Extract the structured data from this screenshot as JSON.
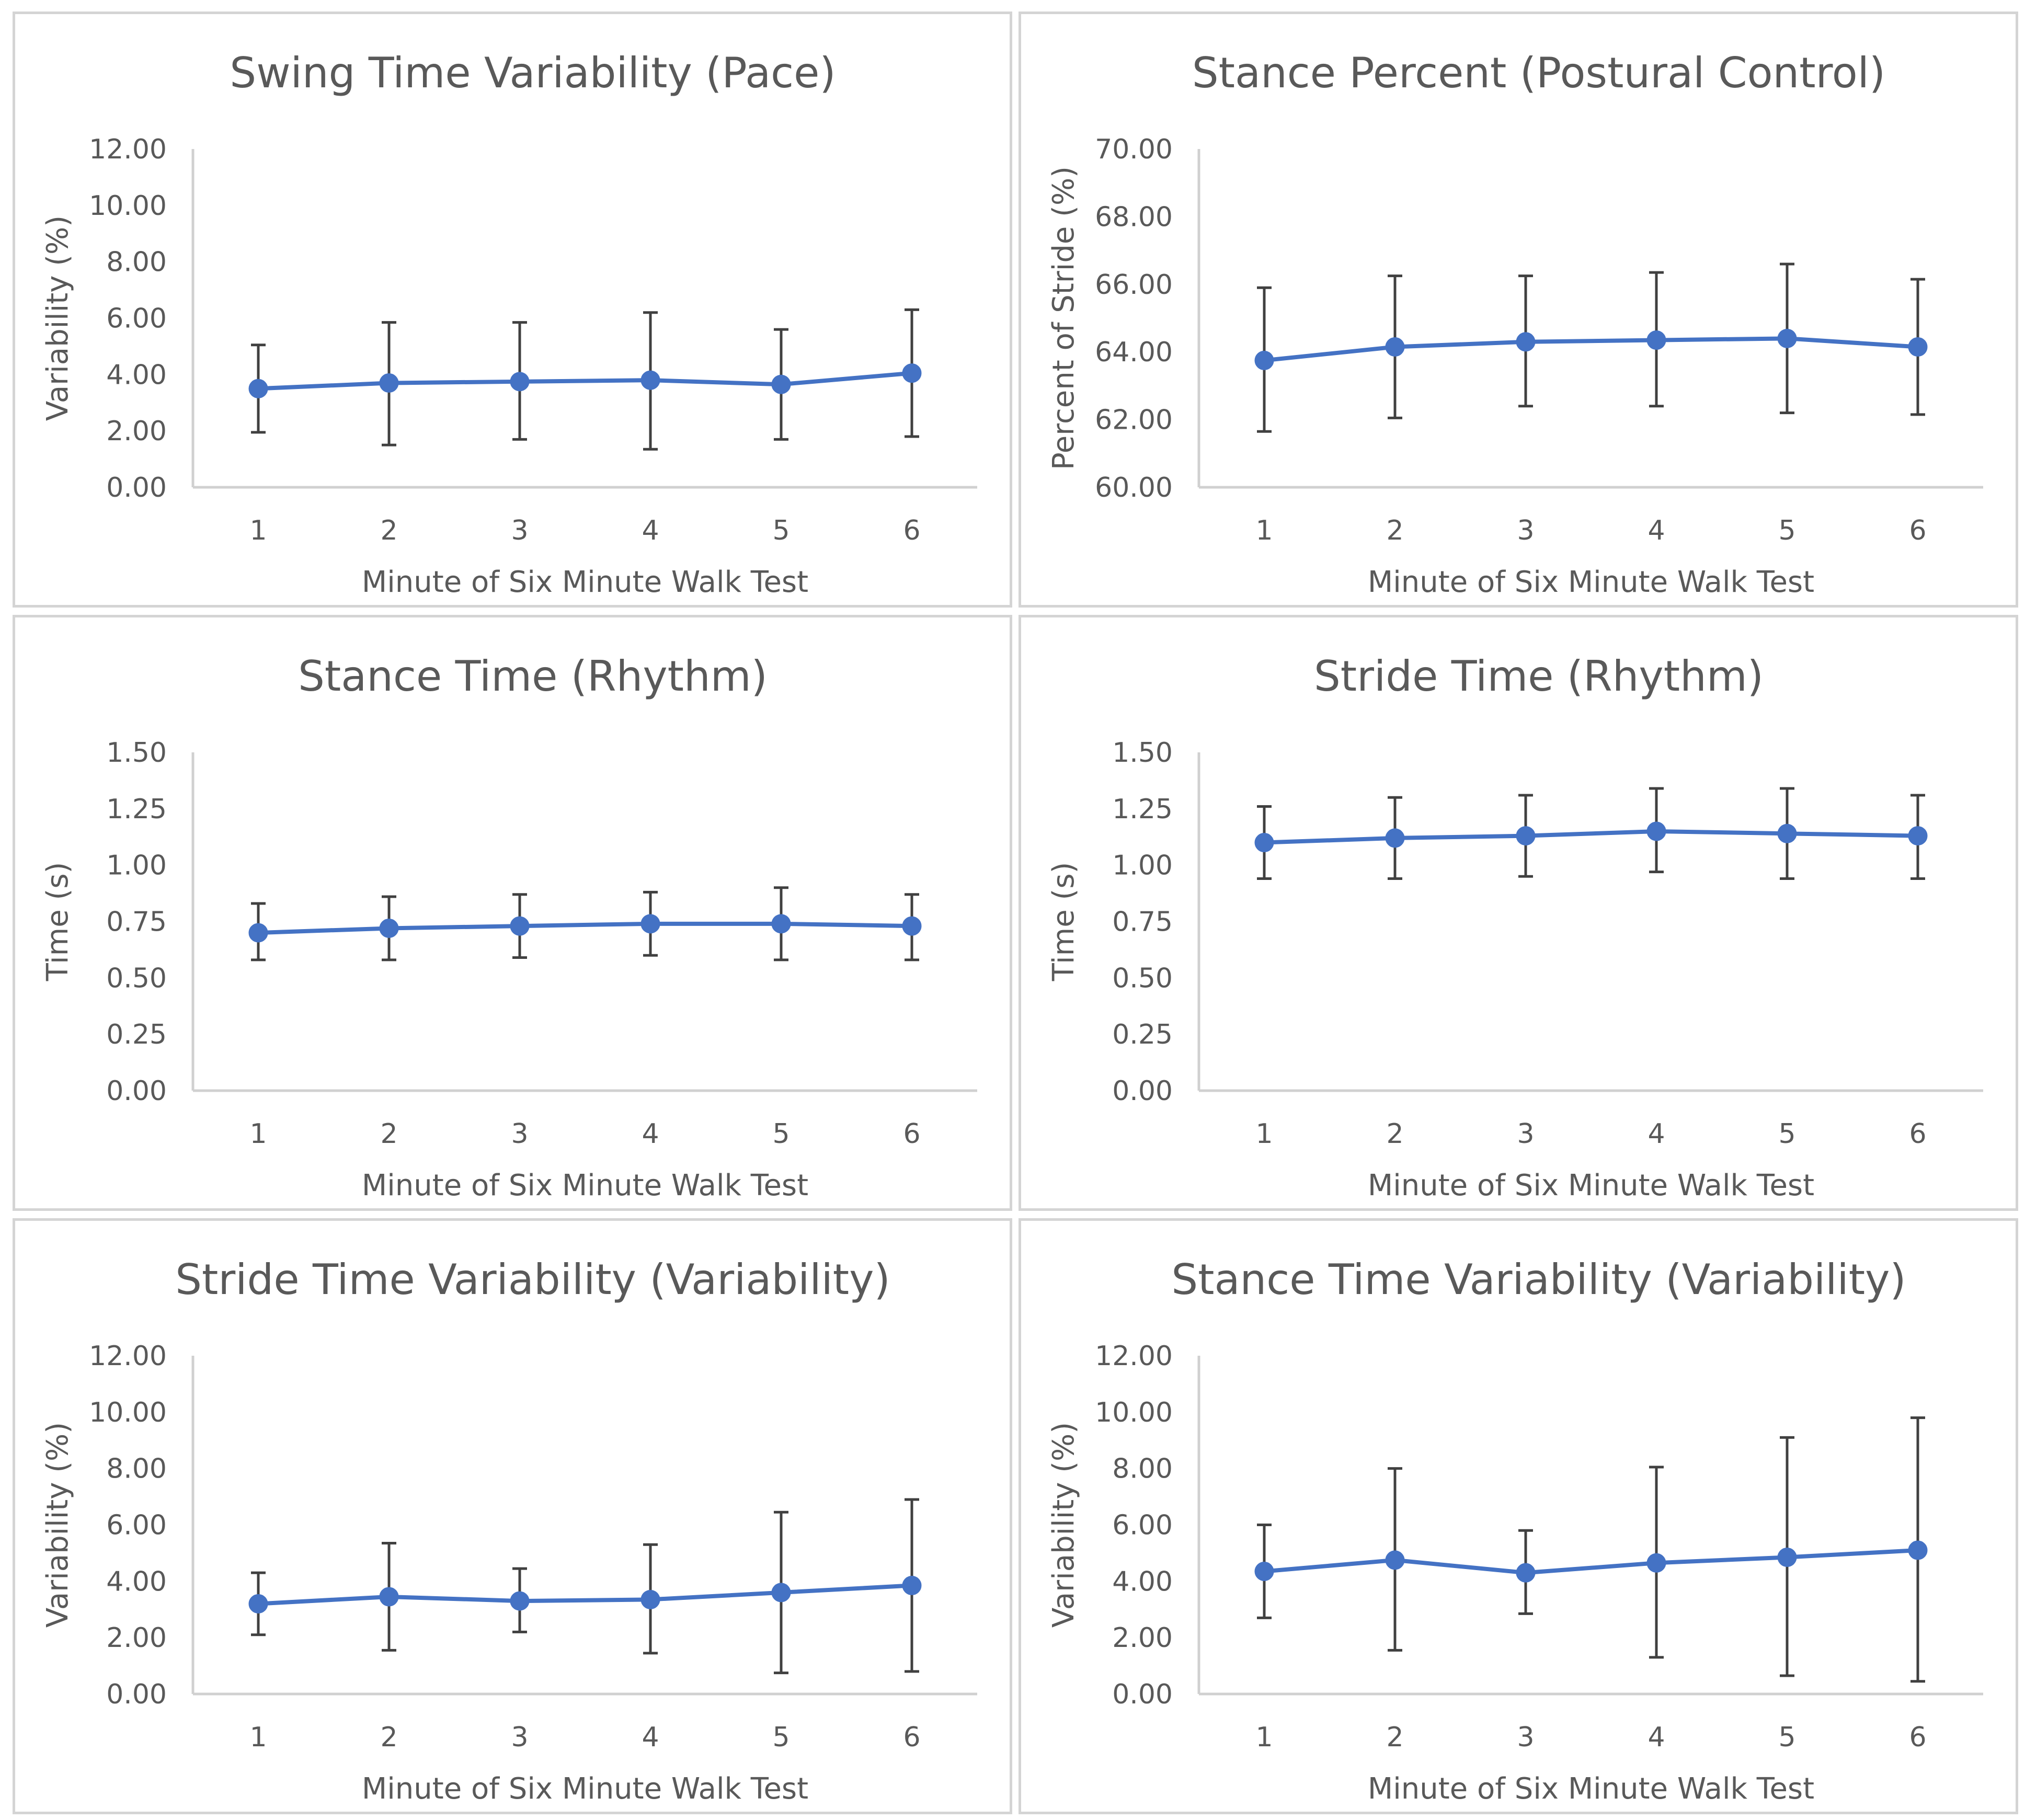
{
  "colors": {
    "series": "#4472c4",
    "error_bar": "#404040",
    "axis": "#d0d0d0",
    "text": "#595959",
    "panel_border": "#d4d4d4"
  },
  "chart_data": [
    {
      "type": "line",
      "title": "Swing Time Variability (Pace)",
      "xlabel": "Minute of Six Minute Walk Test",
      "ylabel": "Variability (%)",
      "categories": [
        "1",
        "2",
        "3",
        "4",
        "5",
        "6"
      ],
      "ylim": [
        0,
        12
      ],
      "y_step": 2,
      "y_decimals": 2,
      "error_bars": true,
      "series": [
        {
          "values": [
            3.5,
            3.7,
            3.75,
            3.8,
            3.65,
            4.05
          ],
          "err_low": [
            1.95,
            1.5,
            1.7,
            1.35,
            1.7,
            1.8
          ],
          "err_high": [
            5.05,
            5.85,
            5.85,
            6.2,
            5.6,
            6.3
          ]
        }
      ],
      "grid": false
    },
    {
      "type": "line",
      "title": "Stance Percent (Postural Control)",
      "xlabel": "Minute of Six Minute Walk Test",
      "ylabel": "Percent of Stride (%)",
      "categories": [
        "1",
        "2",
        "3",
        "4",
        "5",
        "6"
      ],
      "ylim": [
        60,
        70
      ],
      "y_step": 2,
      "y_decimals": 2,
      "error_bars": true,
      "series": [
        {
          "values": [
            63.75,
            64.15,
            64.3,
            64.35,
            64.4,
            64.15
          ],
          "err_low": [
            61.65,
            62.05,
            62.4,
            62.4,
            62.2,
            62.15
          ],
          "err_high": [
            65.9,
            66.25,
            66.25,
            66.35,
            66.6,
            66.15
          ]
        }
      ],
      "grid": false
    },
    {
      "type": "line",
      "title": "Stance Time (Rhythm)",
      "xlabel": "Minute of Six Minute Walk Test",
      "ylabel": "Time (s)",
      "categories": [
        "1",
        "2",
        "3",
        "4",
        "5",
        "6"
      ],
      "ylim": [
        0,
        1.5
      ],
      "y_step": 0.25,
      "y_decimals": 2,
      "error_bars": true,
      "series": [
        {
          "values": [
            0.7,
            0.72,
            0.73,
            0.74,
            0.74,
            0.73
          ],
          "err_low": [
            0.58,
            0.58,
            0.59,
            0.6,
            0.58,
            0.58
          ],
          "err_high": [
            0.83,
            0.86,
            0.87,
            0.88,
            0.9,
            0.87
          ]
        }
      ],
      "grid": false
    },
    {
      "type": "line",
      "title": "Stride Time (Rhythm)",
      "xlabel": "Minute of Six Minute Walk Test",
      "ylabel": "Time (s)",
      "categories": [
        "1",
        "2",
        "3",
        "4",
        "5",
        "6"
      ],
      "ylim": [
        0,
        1.5
      ],
      "y_step": 0.25,
      "y_decimals": 2,
      "error_bars": true,
      "series": [
        {
          "values": [
            1.1,
            1.12,
            1.13,
            1.15,
            1.14,
            1.13
          ],
          "err_low": [
            0.94,
            0.94,
            0.95,
            0.97,
            0.94,
            0.94
          ],
          "err_high": [
            1.26,
            1.3,
            1.31,
            1.34,
            1.34,
            1.31
          ]
        }
      ],
      "grid": false
    },
    {
      "type": "line",
      "title": "Stride Time Variability (Variability)",
      "xlabel": "Minute of Six Minute Walk Test",
      "ylabel": "Variability (%)",
      "categories": [
        "1",
        "2",
        "3",
        "4",
        "5",
        "6"
      ],
      "ylim": [
        0,
        12
      ],
      "y_step": 2,
      "y_decimals": 2,
      "error_bars": true,
      "series": [
        {
          "values": [
            3.2,
            3.45,
            3.3,
            3.35,
            3.6,
            3.85
          ],
          "err_low": [
            2.1,
            1.55,
            2.2,
            1.45,
            0.75,
            0.8
          ],
          "err_high": [
            4.3,
            5.35,
            4.45,
            5.3,
            6.45,
            6.9
          ]
        }
      ],
      "grid": false
    },
    {
      "type": "line",
      "title": "Stance Time Variability (Variability)",
      "xlabel": "Minute of Six Minute Walk Test",
      "ylabel": "Variability (%)",
      "categories": [
        "1",
        "2",
        "3",
        "4",
        "5",
        "6"
      ],
      "ylim": [
        0,
        12
      ],
      "y_step": 2,
      "y_decimals": 2,
      "error_bars": true,
      "series": [
        {
          "values": [
            4.35,
            4.75,
            4.3,
            4.65,
            4.85,
            5.1
          ],
          "err_low": [
            2.7,
            1.55,
            2.85,
            1.3,
            0.65,
            0.45
          ],
          "err_high": [
            6.0,
            8.0,
            5.8,
            8.05,
            9.1,
            9.8
          ]
        }
      ],
      "grid": false
    }
  ]
}
